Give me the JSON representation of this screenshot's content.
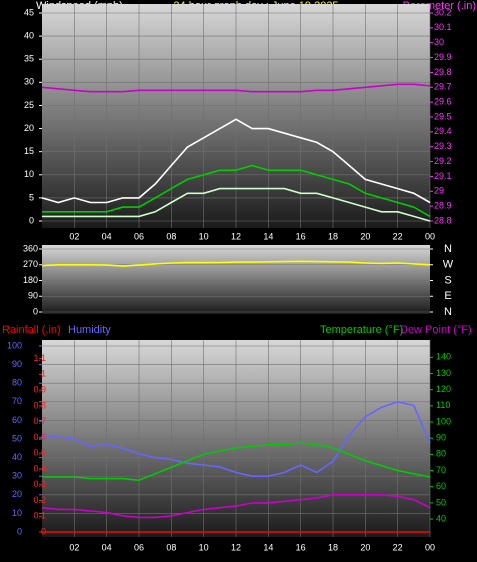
{
  "chart_data": [
    {
      "type": "line",
      "title": "24 hour graph day : June 19 2025",
      "y_label": "Windspeed (mph)",
      "y2_label": "Barometer (.in)",
      "x": [
        0,
        1,
        2,
        3,
        4,
        5,
        6,
        7,
        8,
        9,
        10,
        11,
        12,
        13,
        14,
        15,
        16,
        17,
        18,
        19,
        20,
        21,
        22,
        23,
        24
      ],
      "xlim": [
        0,
        24
      ],
      "xticks": [
        {
          "value": 2,
          "label": "02"
        },
        {
          "value": 4,
          "label": "04"
        },
        {
          "value": 6,
          "label": "06"
        },
        {
          "value": 8,
          "label": "08"
        },
        10,
        12,
        14,
        16,
        18,
        20,
        22,
        {
          "value": 24,
          "label": "00"
        }
      ],
      "ylim": [
        0,
        45
      ],
      "yticks": [
        0,
        5,
        10,
        15,
        20,
        25,
        30,
        35,
        40,
        45
      ],
      "y2lim": [
        28.8,
        30.2
      ],
      "y2ticks": [
        28.8,
        28.9,
        {
          "value": 29,
          "label": "29"
        },
        29.1,
        29.2,
        29.3,
        29.4,
        29.5,
        29.6,
        29.7,
        29.8,
        29.9,
        {
          "value": 30,
          "label": "30"
        },
        30.1,
        30.2
      ],
      "grid": true,
      "series": [
        {
          "color": "#ffffff",
          "values": [
            5,
            4,
            5,
            4,
            4,
            5,
            5,
            8,
            12,
            16,
            18,
            20,
            22,
            20,
            20,
            19,
            18,
            17,
            15,
            12,
            9,
            8,
            7,
            6,
            4
          ]
        },
        {
          "color": "#ccffcc",
          "values": [
            1,
            1,
            1,
            1,
            1,
            1,
            1,
            2,
            4,
            6,
            6,
            7,
            7,
            7,
            7,
            7,
            6,
            6,
            5,
            4,
            3,
            2,
            2,
            1,
            0
          ]
        },
        {
          "color": "#00cc00",
          "values": [
            2,
            2,
            2,
            2,
            2,
            3,
            3,
            5,
            7,
            9,
            10,
            11,
            11,
            12,
            11,
            11,
            11,
            10,
            9,
            8,
            6,
            5,
            4,
            3,
            1
          ]
        },
        {
          "color": "#cc00cc",
          "axis": "y2",
          "values": [
            29.7,
            29.69,
            29.68,
            29.67,
            29.67,
            29.67,
            29.68,
            29.68,
            29.68,
            29.68,
            29.68,
            29.68,
            29.68,
            29.67,
            29.67,
            29.67,
            29.67,
            29.68,
            29.68,
            29.69,
            29.7,
            29.71,
            29.72,
            29.72,
            29.71
          ]
        }
      ]
    },
    {
      "type": "line",
      "x": [
        0,
        1,
        2,
        3,
        4,
        5,
        6,
        7,
        8,
        9,
        10,
        11,
        12,
        13,
        14,
        15,
        16,
        17,
        18,
        19,
        20,
        21,
        22,
        23,
        24
      ],
      "xlim": [
        0,
        24
      ],
      "ylim": [
        0,
        360
      ],
      "yticks": [
        0,
        90,
        180,
        270,
        360
      ],
      "y2lim": [
        0,
        360
      ],
      "y2ticks": [
        {
          "value": 0,
          "label": "N"
        },
        {
          "value": 90,
          "label": "E"
        },
        {
          "value": 180,
          "label": "S"
        },
        {
          "value": 270,
          "label": "W"
        },
        {
          "value": 360,
          "label": "N"
        }
      ],
      "grid": true,
      "series": [
        {
          "color": "#ffff00",
          "values": [
            265,
            270,
            270,
            270,
            268,
            262,
            268,
            275,
            280,
            282,
            282,
            283,
            285,
            285,
            287,
            288,
            290,
            288,
            287,
            285,
            280,
            278,
            280,
            275,
            270
          ]
        }
      ]
    },
    {
      "type": "line",
      "x": [
        0,
        1,
        2,
        3,
        4,
        5,
        6,
        7,
        8,
        9,
        10,
        11,
        12,
        13,
        14,
        15,
        16,
        17,
        18,
        19,
        20,
        21,
        22,
        23,
        24
      ],
      "xlim": [
        0,
        24
      ],
      "xticks": [
        {
          "value": 2,
          "label": "02"
        },
        {
          "value": 4,
          "label": "04"
        },
        {
          "value": 6,
          "label": "06"
        },
        {
          "value": 8,
          "label": "08"
        },
        10,
        12,
        14,
        16,
        18,
        20,
        22,
        {
          "value": 24,
          "label": "00"
        }
      ],
      "ylim": [
        0,
        100
      ],
      "yticks": [
        0,
        10,
        20,
        30,
        40,
        50,
        60,
        70,
        80,
        90,
        100
      ],
      "y2lim": [
        32,
        147
      ],
      "y2ticks": [
        40,
        50,
        60,
        70,
        80,
        90,
        100,
        110,
        120,
        130,
        140
      ],
      "y3lim": [
        0,
        1.18
      ],
      "y3ticks": [
        0,
        0.1,
        0.2,
        0.3,
        0.4,
        0.5,
        0.6,
        0.7,
        0.8,
        0.9,
        1,
        1.1
      ],
      "grid": true,
      "series": [
        {
          "name": "Rainfall (.in)",
          "color": "#ff0000",
          "axis": "y3",
          "values": [
            0,
            0,
            0,
            0,
            0,
            0,
            0,
            0,
            0,
            0,
            0,
            0,
            0,
            0,
            0,
            0,
            0,
            0,
            0,
            0,
            0,
            0,
            0,
            0,
            0
          ]
        },
        {
          "name": "Humidity",
          "color": "#6666ff",
          "values": [
            52,
            51,
            50,
            46,
            47,
            45,
            42,
            40,
            39,
            37,
            36,
            35,
            32,
            30,
            30,
            32,
            36,
            32,
            38,
            52,
            62,
            67,
            70,
            68,
            48
          ]
        },
        {
          "name": "Temperature (°F)",
          "color": "#00cc00",
          "axis": "y2",
          "values": [
            66,
            66,
            66,
            65,
            65,
            65,
            64,
            68,
            72,
            76,
            80,
            82,
            84,
            85,
            86,
            86,
            87,
            86,
            84,
            80,
            76,
            73,
            70,
            68,
            66
          ]
        },
        {
          "name": "Dew Point (°F)",
          "color": "#cc00cc",
          "axis": "y2",
          "values": [
            47,
            46,
            46,
            45,
            44,
            42,
            41,
            41,
            42,
            44,
            46,
            47,
            48,
            50,
            50,
            51,
            52,
            53,
            55,
            55,
            55,
            55,
            54,
            52,
            47
          ]
        }
      ]
    }
  ]
}
